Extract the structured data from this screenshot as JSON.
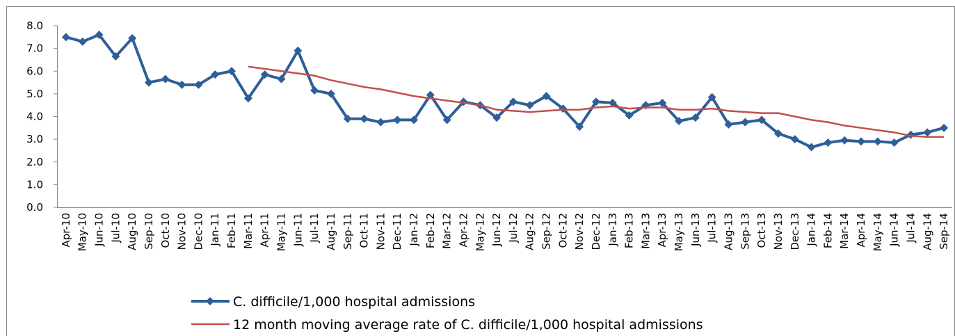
{
  "chart_data": {
    "type": "line",
    "categories": [
      "Apr-10",
      "May-10",
      "Jun-10",
      "Jul-10",
      "Aug-10",
      "Sep-10",
      "Oct-10",
      "Nov-10",
      "Dec-10",
      "Jan-11",
      "Feb-11",
      "Mar-11",
      "Apr-11",
      "May-11",
      "Jun-11",
      "Jul-11",
      "Aug-11",
      "Sep-11",
      "Oct-11",
      "Nov-11",
      "Dec-11",
      "Jan-12",
      "Feb-12",
      "Mar-12",
      "Apr-12",
      "May-12",
      "Jun-12",
      "Jul-12",
      "Aug-12",
      "Sep-12",
      "Oct-12",
      "Nov-12",
      "Dec-12",
      "Jan-13",
      "Feb-13",
      "Mar-13",
      "Apr-13",
      "May-13",
      "Jun-13",
      "Jul-13",
      "Aug-13",
      "Sep-13",
      "Oct-13",
      "Nov-13",
      "Dec-13",
      "Jan-14",
      "Feb-14",
      "Mar-14",
      "Apr-14",
      "May-14",
      "Jun-14",
      "Jul-14",
      "Aug-14",
      "Sep-14"
    ],
    "series": [
      {
        "name": "C. difficile/1,000 hospital admissions",
        "color": "#2f5f98",
        "marker": "diamond",
        "values": [
          7.5,
          7.3,
          7.6,
          6.65,
          7.45,
          5.5,
          5.65,
          5.4,
          5.4,
          5.85,
          6.0,
          4.8,
          5.85,
          5.65,
          6.9,
          5.15,
          5.0,
          3.9,
          3.9,
          3.75,
          3.85,
          3.85,
          4.95,
          3.85,
          4.65,
          4.5,
          3.95,
          4.65,
          4.5,
          4.9,
          4.35,
          3.55,
          4.65,
          4.6,
          4.05,
          4.5,
          4.6,
          3.8,
          3.95,
          4.85,
          3.65,
          3.75,
          3.85,
          3.25,
          3.0,
          2.65,
          2.85,
          2.95,
          2.9,
          2.9,
          2.85,
          3.2,
          3.3,
          3.5
        ]
      },
      {
        "name": "12 month moving average rate of C. difficile/1,000 hospital admissions",
        "color": "#c0504d",
        "marker": "none",
        "values": [
          null,
          null,
          null,
          null,
          null,
          null,
          null,
          null,
          null,
          null,
          null,
          6.2,
          6.1,
          6.0,
          5.9,
          5.8,
          5.6,
          5.45,
          5.3,
          5.2,
          5.05,
          4.9,
          4.8,
          4.7,
          4.6,
          4.5,
          4.3,
          4.25,
          4.2,
          4.25,
          4.3,
          4.3,
          4.4,
          4.45,
          4.35,
          4.4,
          4.4,
          4.3,
          4.3,
          4.35,
          4.25,
          4.2,
          4.15,
          4.15,
          4.0,
          3.85,
          3.75,
          3.6,
          3.5,
          3.4,
          3.3,
          3.15,
          3.1,
          3.1
        ]
      }
    ],
    "ylim": [
      0,
      8
    ],
    "yticks": [
      {
        "value": 0,
        "label": "0.0"
      },
      {
        "value": 1,
        "label": "1.0"
      },
      {
        "value": 2,
        "label": "2.0"
      },
      {
        "value": 3,
        "label": "3.0"
      },
      {
        "value": 4,
        "label": "4.0"
      },
      {
        "value": 5,
        "label": "5.0"
      },
      {
        "value": 6,
        "label": "6.0"
      },
      {
        "value": 7,
        "label": "7.0"
      },
      {
        "value": 8,
        "label": "8.0"
      }
    ],
    "grid": false,
    "legend": "bottom"
  }
}
